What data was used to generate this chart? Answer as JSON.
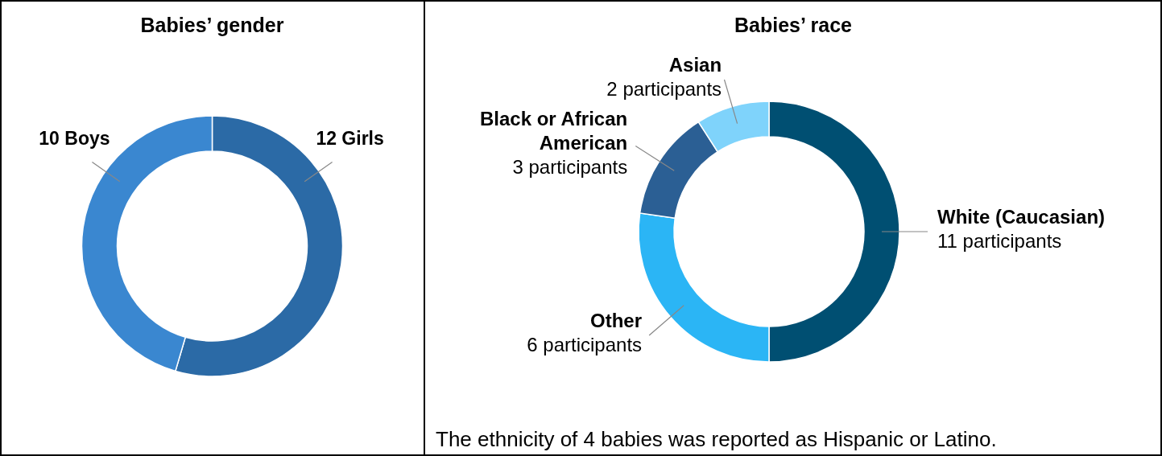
{
  "chart_data": [
    {
      "type": "donut",
      "title": "Babies’ gender",
      "categories": [
        "Girls",
        "Boys"
      ],
      "values": [
        12,
        10
      ],
      "colors": [
        "#2b6aa6",
        "#3a87d0"
      ],
      "value_labels": [
        "12",
        "10"
      ]
    },
    {
      "type": "donut",
      "title": "Babies’ race",
      "categories": [
        "White (Caucasian)",
        "Other",
        "Black or African American",
        "Asian"
      ],
      "values": [
        11,
        6,
        3,
        2
      ],
      "colors": [
        "#004f72",
        "#2bb5f5",
        "#2b5f94",
        "#7fd3fb"
      ],
      "value_labels": [
        "11 participants",
        "6 participants",
        "3 participants",
        "2 participants"
      ],
      "annotations": [
        "The ethnicity of 4 babies was reported as Hispanic or Latino."
      ]
    }
  ]
}
